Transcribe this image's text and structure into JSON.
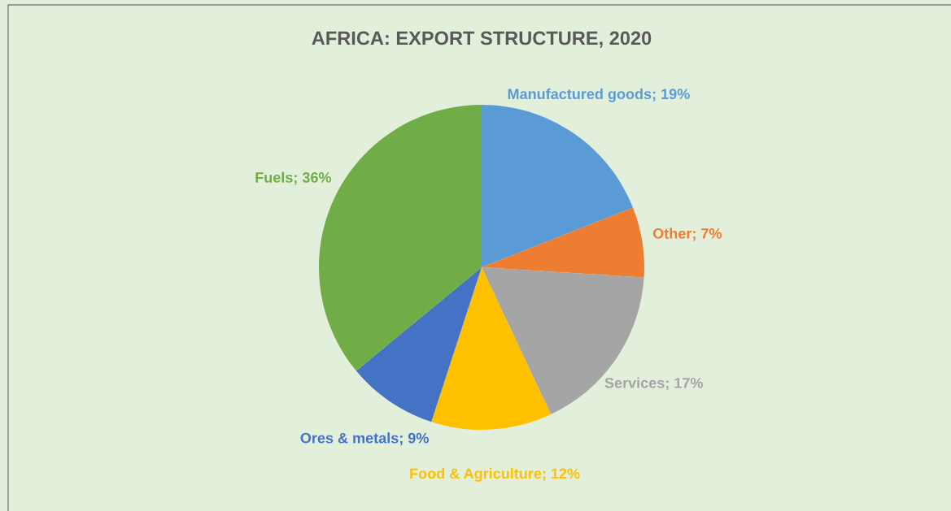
{
  "chart_data": {
    "type": "pie",
    "title": "AFRICA: EXPORT STRUCTURE, 2020",
    "categories": [
      "Manufactured goods",
      "Other",
      "Services",
      "Food & Agriculture",
      "Ores & metals",
      "Fuels"
    ],
    "values": [
      19,
      7,
      17,
      12,
      9,
      36
    ],
    "value_labels": [
      "19%",
      "7%",
      "17%",
      "12%",
      "9%",
      "36%"
    ],
    "colors": [
      "#5b9bd5",
      "#ed7d31",
      "#a5a5a5",
      "#ffc000",
      "#4472c4",
      "#70ad47"
    ],
    "legend": false
  }
}
